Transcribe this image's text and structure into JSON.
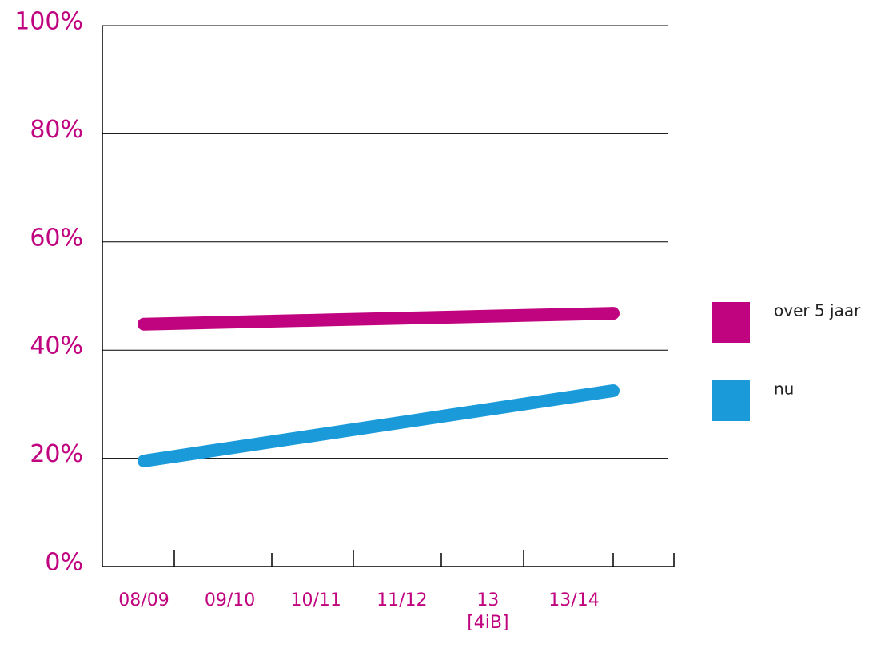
{
  "chart_data": {
    "type": "line",
    "categories": [
      "08/09",
      "09/10",
      "10/11",
      "11/12",
      "13\n[4iB]",
      "13/14"
    ],
    "series": [
      {
        "name": "over 5 jaar",
        "color": "#c0047f",
        "values": [
          44.8,
          45.2,
          45.6,
          46.0,
          46.4,
          46.8
        ]
      },
      {
        "name": "nu",
        "color": "#1a9ad9",
        "values": [
          19.5,
          22.1,
          24.7,
          27.3,
          29.9,
          32.5
        ]
      }
    ],
    "ylim": [
      0,
      100
    ],
    "yticks": [
      {
        "value": 0,
        "label": "0%"
      },
      {
        "value": 20,
        "label": "20%"
      },
      {
        "value": 40,
        "label": "40%"
      },
      {
        "value": 60,
        "label": "60%"
      },
      {
        "value": 80,
        "label": "80%"
      },
      {
        "value": 100,
        "label": "100%"
      }
    ],
    "grid": true,
    "legend": "right"
  }
}
